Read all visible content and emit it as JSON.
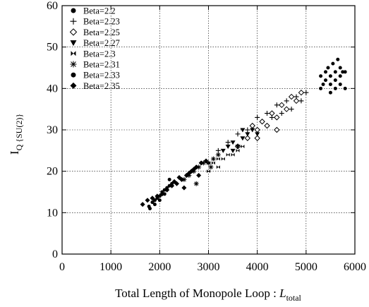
{
  "chart_data": {
    "type": "scatter",
    "title": "",
    "xlabel": {
      "text": "Total Length of Monopole Loop : ",
      "symbol": "L",
      "subscript": "total"
    },
    "ylabel": {
      "text": "I",
      "subscript": "Q {SU(2)}"
    },
    "xlim": [
      0,
      6000
    ],
    "ylim": [
      0,
      60
    ],
    "xticks": [
      0,
      1000,
      2000,
      3000,
      4000,
      5000,
      6000
    ],
    "yticks": [
      0,
      10,
      20,
      30,
      40,
      50,
      60
    ],
    "grid": true,
    "legend_position": "top-left",
    "series": [
      {
        "name": "Beta=2.2",
        "marker": "circle",
        "points": [
          [
            1800,
            11
          ],
          [
            1850,
            12.5
          ],
          [
            1900,
            13
          ],
          [
            1950,
            13.5
          ],
          [
            2000,
            14
          ],
          [
            2050,
            15
          ],
          [
            2100,
            15.5
          ],
          [
            2150,
            16
          ],
          [
            2200,
            16.5
          ],
          [
            1780,
            11.5
          ],
          [
            1900,
            12
          ],
          [
            2000,
            13
          ],
          [
            2100,
            14.5
          ],
          [
            2200,
            18
          ],
          [
            2250,
            17
          ]
        ]
      },
      {
        "name": "Beta=2.23",
        "marker": "plus",
        "points": [
          [
            3200,
            25
          ],
          [
            3400,
            27
          ],
          [
            3600,
            29
          ],
          [
            3800,
            30
          ],
          [
            4000,
            33
          ],
          [
            4200,
            34
          ],
          [
            4400,
            36
          ],
          [
            4600,
            37
          ],
          [
            4800,
            38
          ],
          [
            5000,
            39
          ],
          [
            4700,
            35
          ],
          [
            4900,
            37
          ],
          [
            4500,
            34
          ],
          [
            4300,
            33
          ],
          [
            4100,
            32
          ]
        ]
      },
      {
        "name": "Beta=2.25",
        "marker": "diamond-open",
        "points": [
          [
            3600,
            26
          ],
          [
            3800,
            28
          ],
          [
            4000,
            30
          ],
          [
            4200,
            31
          ],
          [
            4400,
            33
          ],
          [
            4600,
            35
          ],
          [
            4800,
            37
          ],
          [
            4900,
            39
          ],
          [
            4700,
            38
          ],
          [
            4500,
            36
          ],
          [
            4300,
            34
          ],
          [
            4100,
            32
          ],
          [
            3900,
            31
          ],
          [
            4000,
            28
          ],
          [
            4400,
            30
          ]
        ]
      },
      {
        "name": "Beta=2.27",
        "marker": "triangle-down",
        "points": [
          [
            3300,
            25
          ],
          [
            3500,
            27
          ],
          [
            3700,
            28
          ],
          [
            3900,
            30
          ],
          [
            3600,
            26
          ],
          [
            3800,
            29
          ],
          [
            3400,
            26
          ],
          [
            3700,
            30
          ],
          [
            4000,
            29
          ],
          [
            3500,
            25
          ]
        ]
      },
      {
        "name": "Beta=2.3",
        "marker": "bowtie",
        "points": [
          [
            3000,
            22
          ],
          [
            3200,
            23
          ],
          [
            3400,
            24
          ],
          [
            3600,
            25
          ],
          [
            3300,
            23
          ],
          [
            3500,
            24
          ],
          [
            3100,
            22
          ],
          [
            3700,
            26
          ],
          [
            3000,
            20
          ],
          [
            3200,
            21
          ]
        ]
      },
      {
        "name": "Beta=2.31",
        "marker": "asterisk",
        "points": [
          [
            2500,
            18
          ],
          [
            2700,
            20
          ],
          [
            2900,
            22
          ],
          [
            3100,
            23
          ],
          [
            2800,
            21
          ],
          [
            3000,
            22
          ],
          [
            2600,
            19
          ],
          [
            3200,
            24
          ],
          [
            2750,
            17
          ],
          [
            3050,
            21
          ]
        ]
      },
      {
        "name": "Beta=2.33",
        "marker": "circle",
        "points": [
          [
            5300,
            40
          ],
          [
            5400,
            42
          ],
          [
            5500,
            43
          ],
          [
            5600,
            44
          ],
          [
            5700,
            45
          ],
          [
            5400,
            44
          ],
          [
            5500,
            41
          ],
          [
            5600,
            42
          ],
          [
            5700,
            43
          ],
          [
            5800,
            40
          ],
          [
            5350,
            41
          ],
          [
            5450,
            45
          ],
          [
            5550,
            46
          ],
          [
            5650,
            47
          ],
          [
            5750,
            44
          ],
          [
            5300,
            43
          ],
          [
            5500,
            39
          ],
          [
            5600,
            40
          ],
          [
            5700,
            41
          ],
          [
            5800,
            44
          ]
        ]
      },
      {
        "name": "Beta=2.35",
        "marker": "diamond",
        "points": [
          [
            1650,
            12
          ],
          [
            1750,
            13
          ],
          [
            1850,
            13.5
          ],
          [
            1950,
            14
          ],
          [
            2050,
            14.5
          ],
          [
            2150,
            15.5
          ],
          [
            2250,
            16.5
          ],
          [
            2350,
            17
          ],
          [
            2450,
            18
          ],
          [
            2550,
            19
          ],
          [
            2650,
            20
          ],
          [
            2750,
            21
          ],
          [
            2850,
            22
          ],
          [
            2950,
            22.5
          ],
          [
            2400,
            18.5
          ],
          [
            2300,
            17.5
          ],
          [
            2600,
            19.5
          ],
          [
            2700,
            20.5
          ],
          [
            2800,
            19
          ],
          [
            2500,
            16
          ]
        ]
      }
    ]
  }
}
